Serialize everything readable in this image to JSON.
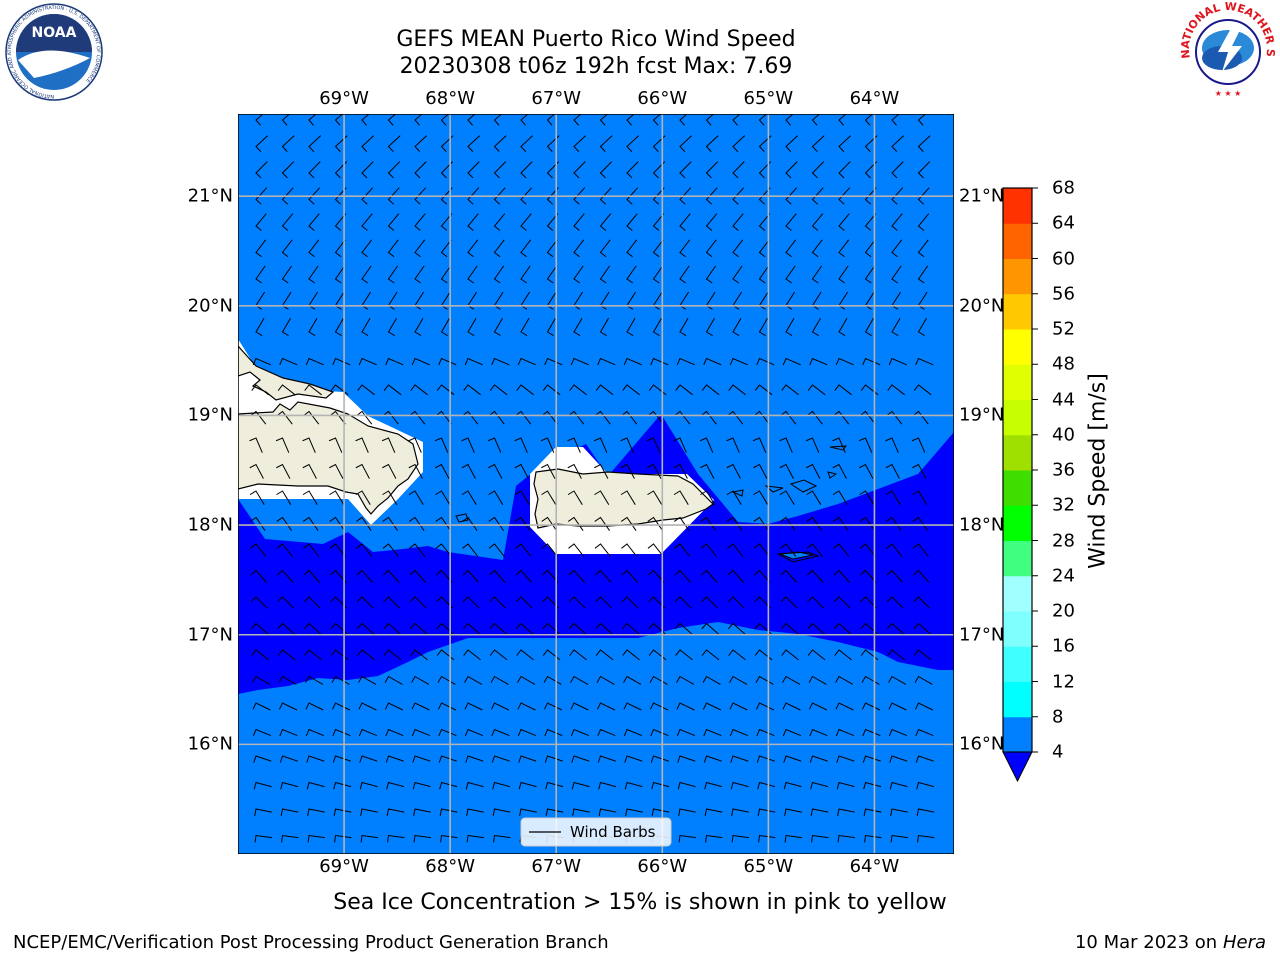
{
  "header": {
    "title_line1": "GEFS MEAN Puerto Rico Wind Speed",
    "title_line2": "20230308 t06z 192h fcst   Max: 7.69"
  },
  "logos": {
    "noaa_text": "NOAA",
    "noaa_ring_text": "NATIONAL OCEANIC AND ATMOSPHERIC ADMINISTRATION · U.S. DEPARTMENT OF COMMERCE",
    "nws_ring_text": "NATIONAL WEATHER SERVICE"
  },
  "map": {
    "lon_range": [
      -70,
      -63.25
    ],
    "lat_range": [
      15,
      21.75
    ],
    "lon_ticks": [
      "69°W",
      "68°W",
      "67°W",
      "66°W",
      "65°W",
      "64°W"
    ],
    "lat_ticks": [
      "21°N",
      "20°N",
      "19°N",
      "18°N",
      "17°N",
      "16°N"
    ],
    "right_lat_ticks": [
      "21°N",
      "20°N",
      "19°N",
      "18°N",
      "17°N",
      "16°N"
    ],
    "grid": true,
    "ocean_color": "#0080ff",
    "strong_wind_color": "#0000ff",
    "land_color": "#efeedd",
    "legend_label": "Wind Barbs"
  },
  "colorbar": {
    "label": "Wind Speed [m/s]",
    "levels": [
      "68",
      "64",
      "60",
      "56",
      "52",
      "48",
      "44",
      "40",
      "36",
      "32",
      "28",
      "24",
      "20",
      "16",
      "12",
      "8",
      "4"
    ],
    "colors_bottom_to_top": [
      "#0080ff",
      "#00ffff",
      "#40ffff",
      "#80ffff",
      "#a0ffff",
      "#40ff80",
      "#00ff00",
      "#40dd00",
      "#a0e000",
      "#c8ff00",
      "#e0ff00",
      "#ffff00",
      "#ffc800",
      "#ff9600",
      "#ff6400",
      "#ff3200",
      "#ff0000"
    ],
    "under_color": "#0000ff"
  },
  "footer": {
    "caption": "Sea Ice Concentration > 15% is shown in pink to yellow",
    "left": "NCEP/EMC/Verification Post Processing Product Generation Branch",
    "date": "10 Mar 2023 on",
    "machine": "Hera"
  }
}
